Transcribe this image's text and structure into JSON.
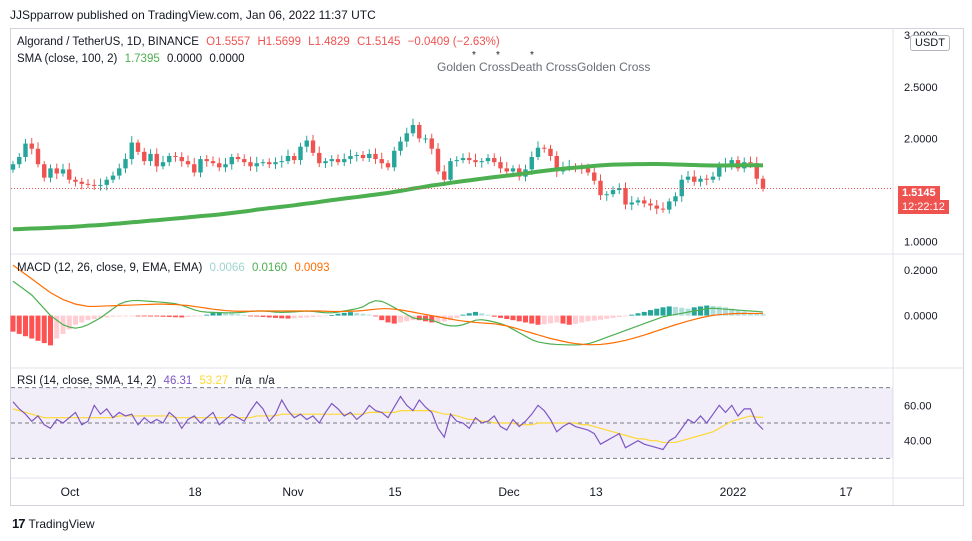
{
  "header": {
    "published": "JJSpparrow published on TradingView.com, Jan 06, 2022 11:37 UTC"
  },
  "main_legend": {
    "symbol": "Algorand / TetherUS, 1D, BINANCE",
    "open": "O1.5557",
    "high": "H1.5699",
    "low": "L1.4829",
    "close": "C1.5145",
    "change": "−0.0409 (−2.63%)"
  },
  "sma_legend": {
    "label": "SMA (close, 100, 2)",
    "v1": "1.7395",
    "v2": "0.0000",
    "v3": "0.0000"
  },
  "macd_legend": {
    "label": "MACD (12, 26, close, 9, EMA, EMA)",
    "hist": "0.0066",
    "macd": "0.0160",
    "signal": "0.0093"
  },
  "rsi_legend": {
    "label": "RSI (14, close, SMA, 14, 2)",
    "rsi": "46.31",
    "ma": "53.27",
    "n1": "n/a",
    "n2": "n/a"
  },
  "annotations": {
    "text": "Golden CrossDeath CrossGolden Cross"
  },
  "currency_button": "USDT",
  "price_badge": {
    "price": "1.5145",
    "countdown": "12:22:12"
  },
  "x_ticks": [
    "Oct",
    "18",
    "Nov",
    "15",
    "Dec",
    "13",
    "2022",
    "17"
  ],
  "footer": {
    "brand": "TradingView"
  },
  "colors": {
    "up": "#26a69a",
    "down": "#ef5350",
    "sma": "#4caf50",
    "macd": "#4caf50",
    "signal": "#ff6d00",
    "rsi": "#7e57c2",
    "rsi_ma": "#fdd835"
  },
  "chart_data": [
    {
      "type": "candlestick",
      "title": "Algorand / TetherUS, 1D, BINANCE",
      "ylim": [
        0.9,
        3.05
      ],
      "y_ticks": [
        "3.0000",
        "2.5000",
        "2.0000",
        "1.5000",
        "1.0000"
      ],
      "y_tick_values": [
        3.0,
        2.5,
        2.0,
        1.5,
        1.0
      ],
      "close": [
        1.75,
        1.82,
        1.95,
        1.9,
        1.75,
        1.62,
        1.71,
        1.66,
        1.7,
        1.6,
        1.58,
        1.56,
        1.55,
        1.54,
        1.55,
        1.6,
        1.64,
        1.71,
        1.8,
        1.96,
        1.87,
        1.78,
        1.85,
        1.73,
        1.77,
        1.83,
        1.82,
        1.78,
        1.75,
        1.67,
        1.8,
        1.78,
        1.76,
        1.72,
        1.75,
        1.82,
        1.8,
        1.77,
        1.73,
        1.76,
        1.77,
        1.75,
        1.77,
        1.78,
        1.83,
        1.79,
        1.92,
        1.98,
        1.86,
        1.76,
        1.78,
        1.8,
        1.77,
        1.8,
        1.83,
        1.84,
        1.81,
        1.85,
        1.8,
        1.76,
        1.72,
        1.88,
        1.97,
        2.05,
        2.13,
        2.0,
        2.0,
        1.9,
        1.68,
        1.6,
        1.78,
        1.79,
        1.81,
        1.79,
        1.77,
        1.78,
        1.81,
        1.77,
        1.71,
        1.68,
        1.71,
        1.63,
        1.7,
        1.82,
        1.91,
        1.9,
        1.83,
        1.68,
        1.72,
        1.73,
        1.72,
        1.71,
        1.67,
        1.59,
        1.45,
        1.46,
        1.5,
        1.52,
        1.36,
        1.38,
        1.4,
        1.37,
        1.35,
        1.32,
        1.31,
        1.39,
        1.44,
        1.6,
        1.63,
        1.58,
        1.61,
        1.6,
        1.63,
        1.72,
        1.75,
        1.79,
        1.71,
        1.77,
        1.76,
        1.61,
        1.5145
      ],
      "series": [
        {
          "name": "SMA (close, 100, 2)",
          "values": [
            1.12,
            1.122,
            1.125,
            1.127,
            1.129,
            1.131,
            1.134,
            1.137,
            1.14,
            1.142,
            1.146,
            1.15,
            1.155,
            1.158,
            1.162,
            1.166,
            1.172,
            1.176,
            1.182,
            1.188,
            1.192,
            1.198,
            1.204,
            1.208,
            1.214,
            1.219,
            1.224,
            1.229,
            1.235,
            1.241,
            1.247,
            1.252,
            1.257,
            1.263,
            1.27,
            1.278,
            1.285,
            1.292,
            1.3,
            1.31,
            1.317,
            1.325,
            1.331,
            1.338,
            1.345,
            1.352,
            1.361,
            1.369,
            1.376,
            1.385,
            1.394,
            1.402,
            1.41,
            1.418,
            1.425,
            1.432,
            1.44,
            1.448,
            1.456,
            1.464,
            1.472,
            1.482,
            1.492,
            1.502,
            1.514,
            1.523,
            1.533,
            1.544,
            1.552,
            1.56,
            1.57,
            1.578,
            1.586,
            1.594,
            1.602,
            1.61,
            1.618,
            1.625,
            1.632,
            1.639,
            1.646,
            1.654,
            1.662,
            1.67,
            1.678,
            1.686,
            1.693,
            1.7,
            1.706,
            1.712,
            1.717,
            1.722,
            1.728,
            1.734,
            1.739,
            1.743,
            1.746,
            1.748,
            1.749,
            1.75,
            1.751,
            1.751,
            1.752,
            1.752,
            1.751,
            1.75,
            1.748,
            1.746,
            1.744,
            1.742,
            1.74,
            1.739,
            1.738,
            1.738,
            1.738,
            1.739,
            1.74,
            1.74,
            1.74,
            1.74,
            1.7395
          ]
        }
      ]
    },
    {
      "type": "line",
      "title": "MACD (12, 26, close, 9, EMA, EMA)",
      "ylim": [
        -0.22,
        0.26
      ],
      "y_ticks": [
        "0.2000",
        "0.0000"
      ],
      "y_tick_values": [
        0.2,
        0.0
      ],
      "series": [
        {
          "name": "Histogram",
          "values": [
            -0.07,
            -0.08,
            -0.09,
            -0.1,
            -0.11,
            -0.12,
            -0.13,
            -0.1,
            -0.08,
            -0.06,
            -0.04,
            -0.03,
            -0.02,
            -0.015,
            -0.01,
            -0.008,
            -0.005,
            -0.004,
            -0.003,
            -0.002,
            -0.002,
            -0.003,
            -0.004,
            -0.004,
            -0.005,
            -0.006,
            -0.007,
            -0.008,
            -0.006,
            -0.004,
            -0.002,
            0.004,
            0.012,
            0.014,
            0.012,
            0.01,
            0.006,
            0.002,
            -0.002,
            -0.004,
            -0.006,
            -0.008,
            -0.01,
            -0.012,
            -0.013,
            -0.012,
            -0.01,
            -0.008,
            -0.006,
            -0.004,
            -0.003,
            0.002,
            0.008,
            0.012,
            0.015,
            0.012,
            0.008,
            0.004,
            -0.002,
            -0.02,
            -0.03,
            -0.035,
            -0.03,
            -0.025,
            -0.02,
            -0.02,
            -0.025,
            -0.03,
            -0.028,
            -0.026,
            -0.02,
            -0.01,
            0.004,
            0.01,
            0.016,
            0.01,
            0.004,
            -0.005,
            -0.01,
            -0.015,
            -0.02,
            -0.025,
            -0.03,
            -0.035,
            -0.04,
            -0.038,
            -0.034,
            -0.03,
            -0.035,
            -0.04,
            -0.036,
            -0.03,
            -0.025,
            -0.022,
            -0.018,
            -0.014,
            -0.01,
            -0.006,
            -0.002,
            0.004,
            0.01,
            0.016,
            0.024,
            0.03,
            0.036,
            0.04,
            0.038,
            0.034,
            0.03,
            0.036,
            0.04,
            0.044,
            0.042,
            0.04,
            0.036,
            0.03,
            0.024,
            0.018,
            0.012,
            0.008,
            0.0066
          ]
        },
        {
          "name": "MACD",
          "values": [
            0.15,
            0.13,
            0.11,
            0.09,
            0.06,
            0.03,
            0.0,
            -0.02,
            -0.04,
            -0.05,
            -0.055,
            -0.05,
            -0.04,
            -0.025,
            -0.01,
            0.01,
            0.03,
            0.05,
            0.06,
            0.065,
            0.066,
            0.064,
            0.062,
            0.06,
            0.058,
            0.055,
            0.052,
            0.045,
            0.035,
            0.025,
            0.018,
            0.015,
            0.014,
            0.013,
            0.012,
            0.012,
            0.013,
            0.015,
            0.018,
            0.02,
            0.02,
            0.018,
            0.015,
            0.014,
            0.015,
            0.016,
            0.018,
            0.02,
            0.018,
            0.015,
            0.012,
            0.012,
            0.015,
            0.02,
            0.025,
            0.03,
            0.038,
            0.055,
            0.065,
            0.062,
            0.05,
            0.035,
            0.02,
            0.005,
            -0.01,
            -0.015,
            -0.015,
            -0.02,
            -0.03,
            -0.04,
            -0.045,
            -0.045,
            -0.04,
            -0.03,
            -0.02,
            -0.018,
            -0.022,
            -0.028,
            -0.035,
            -0.045,
            -0.06,
            -0.075,
            -0.09,
            -0.105,
            -0.115,
            -0.12,
            -0.124,
            -0.126,
            -0.127,
            -0.128,
            -0.128,
            -0.127,
            -0.123,
            -0.115,
            -0.105,
            -0.095,
            -0.085,
            -0.075,
            -0.065,
            -0.055,
            -0.045,
            -0.035,
            -0.025,
            -0.015,
            -0.005,
            0.0,
            0.005,
            0.01,
            0.015,
            0.02,
            0.025,
            0.03,
            0.032,
            0.03,
            0.028,
            0.026,
            0.024,
            0.022,
            0.02,
            0.018,
            0.016
          ]
        },
        {
          "name": "Signal",
          "values": [
            0.22,
            0.2,
            0.18,
            0.16,
            0.14,
            0.12,
            0.1,
            0.085,
            0.07,
            0.06,
            0.05,
            0.045,
            0.04,
            0.04,
            0.041,
            0.042,
            0.043,
            0.044,
            0.045,
            0.046,
            0.047,
            0.048,
            0.049,
            0.05,
            0.05,
            0.049,
            0.048,
            0.046,
            0.044,
            0.04,
            0.036,
            0.032,
            0.028,
            0.025,
            0.022,
            0.02,
            0.019,
            0.019,
            0.019,
            0.02,
            0.02,
            0.02,
            0.02,
            0.02,
            0.02,
            0.02,
            0.02,
            0.02,
            0.02,
            0.02,
            0.019,
            0.018,
            0.018,
            0.018,
            0.019,
            0.02,
            0.022,
            0.025,
            0.028,
            0.03,
            0.03,
            0.028,
            0.025,
            0.02,
            0.015,
            0.01,
            0.005,
            0.0,
            -0.005,
            -0.01,
            -0.015,
            -0.02,
            -0.024,
            -0.027,
            -0.03,
            -0.032,
            -0.034,
            -0.036,
            -0.04,
            -0.045,
            -0.052,
            -0.06,
            -0.068,
            -0.076,
            -0.084,
            -0.092,
            -0.1,
            -0.106,
            -0.112,
            -0.118,
            -0.122,
            -0.125,
            -0.127,
            -0.127,
            -0.126,
            -0.123,
            -0.119,
            -0.114,
            -0.108,
            -0.101,
            -0.093,
            -0.085,
            -0.076,
            -0.067,
            -0.058,
            -0.049,
            -0.04,
            -0.032,
            -0.024,
            -0.017,
            -0.01,
            -0.004,
            0.001,
            0.004,
            0.006,
            0.008,
            0.009,
            0.0093,
            0.0093,
            0.0093,
            0.0093
          ]
        }
      ]
    },
    {
      "type": "line",
      "title": "RSI (14, close, SMA, 14, 2)",
      "ylim": [
        20,
        80
      ],
      "y_ticks": [
        "60.00",
        "40.00"
      ],
      "y_tick_values": [
        60,
        40
      ],
      "bands": [
        70,
        50,
        30
      ],
      "series": [
        {
          "name": "RSI",
          "values": [
            62,
            58,
            55,
            51,
            54,
            49,
            47,
            52,
            50,
            53,
            56,
            49,
            51,
            60,
            55,
            58,
            53,
            56,
            54,
            55,
            49,
            53,
            50,
            52,
            50,
            56,
            53,
            47,
            52,
            54,
            50,
            53,
            56,
            49,
            52,
            55,
            53,
            51,
            57,
            62,
            58,
            51,
            55,
            63,
            57,
            53,
            55,
            52,
            54,
            50,
            56,
            61,
            58,
            54,
            56,
            52,
            55,
            60,
            57,
            56,
            53,
            59,
            65,
            60,
            57,
            63,
            59,
            56,
            47,
            42,
            55,
            51,
            50,
            47,
            53,
            50,
            51,
            54,
            48,
            46,
            52,
            48,
            51,
            55,
            60,
            57,
            52,
            45,
            48,
            50,
            48,
            47,
            46,
            44,
            38,
            40,
            42,
            44,
            36,
            38,
            40,
            38,
            37,
            36,
            35,
            40,
            42,
            47,
            52,
            50,
            54,
            50,
            55,
            60,
            56,
            60,
            54,
            58,
            58,
            50,
            46.31
          ]
        },
        {
          "name": "RSI-based MA",
          "values": [
            58,
            57,
            56,
            55,
            54,
            53,
            53,
            53,
            53,
            53,
            53,
            53,
            53,
            53,
            53,
            53,
            53,
            54,
            54,
            54,
            54,
            54,
            54,
            54,
            54,
            54,
            53,
            53,
            53,
            53,
            53,
            53,
            53,
            53,
            53,
            53,
            53,
            53,
            53,
            54,
            54,
            54,
            54,
            55,
            55,
            55,
            55,
            55,
            55,
            55,
            55,
            55,
            55,
            55,
            55,
            55,
            55,
            56,
            56,
            56,
            56,
            56,
            57,
            57,
            57,
            57,
            57,
            57,
            56,
            55,
            55,
            54,
            53,
            52,
            52,
            51,
            51,
            50,
            50,
            50,
            50,
            49,
            49,
            49,
            50,
            50,
            50,
            50,
            50,
            50,
            50,
            49,
            49,
            48,
            47,
            46,
            45,
            44,
            43,
            42,
            41,
            41,
            40,
            40,
            39,
            39,
            39,
            40,
            41,
            42,
            43,
            44,
            45,
            47,
            49,
            51,
            52,
            53,
            54,
            53.27,
            53.27
          ]
        }
      ]
    }
  ]
}
